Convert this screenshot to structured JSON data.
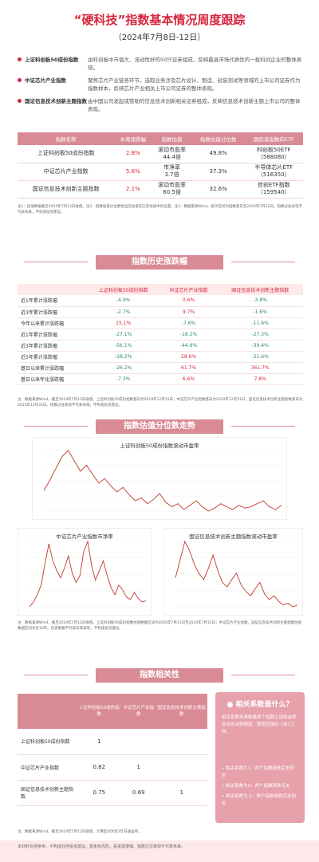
{
  "header": {
    "title": "“硬科技”指数基本情况周度跟踪",
    "subtitle": "（2024年7月8日-12日）"
  },
  "intro": [
    {
      "name": "上证科创板50成份指数",
      "desc": "由科创板中市值大、流动性好的50只证券组成，反映最具市场代表性的一批科创企业的整体表现。"
    },
    {
      "name": "中证芯片产业指数",
      "desc": "聚焦芯片产业链各环节，选取业务涉及芯片设计、制造、封装测试等领域的上市公司证券作为指数样本，反映芯片产业相关上市公司证券的整体表现。"
    },
    {
      "name": "国证信息技术创新主题指数",
      "desc": "由中国公司发起或赞助的信息技术创新相关证券组成，反映信息技术创新主题上市公司的整体表现。"
    }
  ],
  "table1": {
    "headers": [
      "指数名称",
      "本周涨跌幅",
      "指数估值",
      "指数估值分位数",
      "跟踪该指数的ETF"
    ],
    "rows": [
      {
        "name": "上证科创板50成份指数",
        "change": "2.8%",
        "val1": "滚动市盈率",
        "val2": "44.4倍",
        "pct": "49.8%",
        "etf1": "科创板50ETF",
        "etf2": "（588080）"
      },
      {
        "name": "中证芯片产业指数",
        "change": "5.6%",
        "val1": "市净率",
        "val2": "3.7倍",
        "pct": "37.3%",
        "etf1": "半导体芯片ETF",
        "etf2": "（516350）"
      },
      {
        "name": "国证信息技术创新主题指数",
        "change": "2.1%",
        "val1": "滚动市盈率",
        "val2": "60.5倍",
        "pct": "32.6%",
        "etf1": "信创ETF指数",
        "etf2": "（159540）"
      }
    ]
  },
  "note1": "注1：估值数据截至2024年7月12日收盘。注2：指数估值分位数指当前估值在历史估值中的位置。注3：数据来源Wind，统计区间为指数基日至2024年7月12日。指数过往表现不代表未来，不构成投资建议。",
  "section2": {
    "title": "指数历史涨跌幅"
  },
  "table2": {
    "headers": [
      "",
      "上证科创板50成份指数",
      "中证芯片产业指数",
      "国证信息技术创新主题指数"
    ],
    "rows": [
      {
        "label": "近1年累计涨跌幅",
        "a": "-4.9%",
        "b": "0.6%",
        "c": "-3.8%"
      },
      {
        "label": "近3年累计涨跌幅",
        "a": "-2.7%",
        "b": "9.7%",
        "c": "-1.6%"
      },
      {
        "label": "今年以来累计涨跌幅",
        "a": "15.1%",
        "b": "-7.6%",
        "c": "-11.6%"
      },
      {
        "label": "近1年累计涨跌幅",
        "a": "-27.1%",
        "b": "-18.2%",
        "c": "-27.3%"
      },
      {
        "label": "近3年累计涨跌幅",
        "a": "-56.1%",
        "b": "-44.6%",
        "c": "-39.4%"
      },
      {
        "label": "近5年累计涨跌幅",
        "a": "-28.2%",
        "b": "28.6%",
        "c": "-21.6%"
      },
      {
        "label": "基日以来累计涨跌幅",
        "a": "-26.2%",
        "b": "61.7%",
        "c": "361.7%"
      },
      {
        "label": "基日以来年化涨跌幅",
        "a": "-7.3%",
        "b": "6.6%",
        "c": "7.8%"
      }
    ]
  },
  "note2": "注：数据来源Wind，截至2024年7月12日收盘。上证科创板50成份指数基日为2019年12月31日，中证芯片产业指数基日为2012年12月31日，国证信息技术创新主题指数基日为2014年12月31日。指数过往表现不代表未来，不构成投资建议。",
  "section3": {
    "title": "指数估值分位数走势"
  },
  "charts": [
    {
      "title": "上证科创板50成份指数滚动市盈率",
      "color": "#c0392b"
    },
    {
      "title": "中证芯片产业指数市净率",
      "color": "#c0392b"
    },
    {
      "title": "国证信息技术创新主题指数滚动市盈率",
      "color": "#c0392b"
    }
  ],
  "chart_data": [
    {
      "type": "line",
      "title": "上证科创板50成份指数滚动市盈率",
      "xlabel": "",
      "ylabel": "",
      "values": [
        55,
        62,
        70,
        78,
        82,
        75,
        68,
        72,
        66,
        60,
        63,
        58,
        54,
        57,
        52,
        48,
        50,
        46,
        49,
        53,
        47,
        44,
        46,
        42,
        45,
        48,
        44,
        41,
        43,
        46,
        44,
        42,
        45,
        43,
        44,
        46,
        48,
        44,
        42,
        45
      ]
    },
    {
      "type": "line",
      "title": "中证芯片产业指数市净率",
      "xlabel": "",
      "ylabel": "",
      "values": [
        3.2,
        3.6,
        4.2,
        5.0,
        6.8,
        8.4,
        7.0,
        6.2,
        5.6,
        6.4,
        7.4,
        6.0,
        5.2,
        5.8,
        7.8,
        8.6,
        6.6,
        5.4,
        6.2,
        7.0,
        5.8,
        4.8,
        4.2,
        5.0,
        4.6,
        4.0,
        3.8,
        4.4,
        3.9,
        3.6,
        3.7
      ]
    },
    {
      "type": "line",
      "title": "国证信息技术创新主题指数滚动市盈率",
      "xlabel": "",
      "ylabel": "",
      "values": [
        90,
        110,
        130,
        120,
        105,
        95,
        88,
        100,
        115,
        98,
        85,
        80,
        88,
        95,
        82,
        75,
        70,
        78,
        85,
        72,
        66,
        70,
        64,
        60,
        62,
        58,
        60
      ]
    }
  ],
  "note3": "注：数据来源Wind，截至2024年7月12日收盘。上证科创板50成份指数估值数据区间为2020年7月23日至2024年7月12日；中证芯片产业指数、国证信息技术创新主题指数估值数据区间为近10年。历史数据不代表未来表现，不构成投资建议。",
  "section4": {
    "title": "指数相关性"
  },
  "table3": {
    "headers": [
      "",
      "上证科创板50成份指数",
      "中证芯片产业指数",
      "国证信息技术创新主题指数"
    ],
    "rows": [
      {
        "label": "上证科创板50成份指数",
        "a": "1",
        "b": "",
        "c": ""
      },
      {
        "label": "中证芯片产业指数",
        "a": "0.82",
        "b": "1",
        "c": ""
      },
      {
        "label": "国证信息技术创新主题指数",
        "a": "0.75",
        "b": "0.69",
        "c": "1"
      }
    ]
  },
  "relation": {
    "title": "相关系数是什么？",
    "text": "相关系数用来衡量两个指数之间收益率变化的关联程度，取值范围在-1到1之间。",
    "list": [
      "相关系数为1：两个指数涨跌完全同步",
      "相关系数为0：两个指数涨跌无关",
      "相关系数为-1：两个指数涨跌完全相反"
    ]
  },
  "note4": "注：数据来源Wind，截至2024年7月12日收盘，计算区间为近3年日收益率。",
  "footer": "本材料仅供参考，不构成任何投资建议。基金有风险，投资需谨慎。指数过往表现不代表未来。"
}
